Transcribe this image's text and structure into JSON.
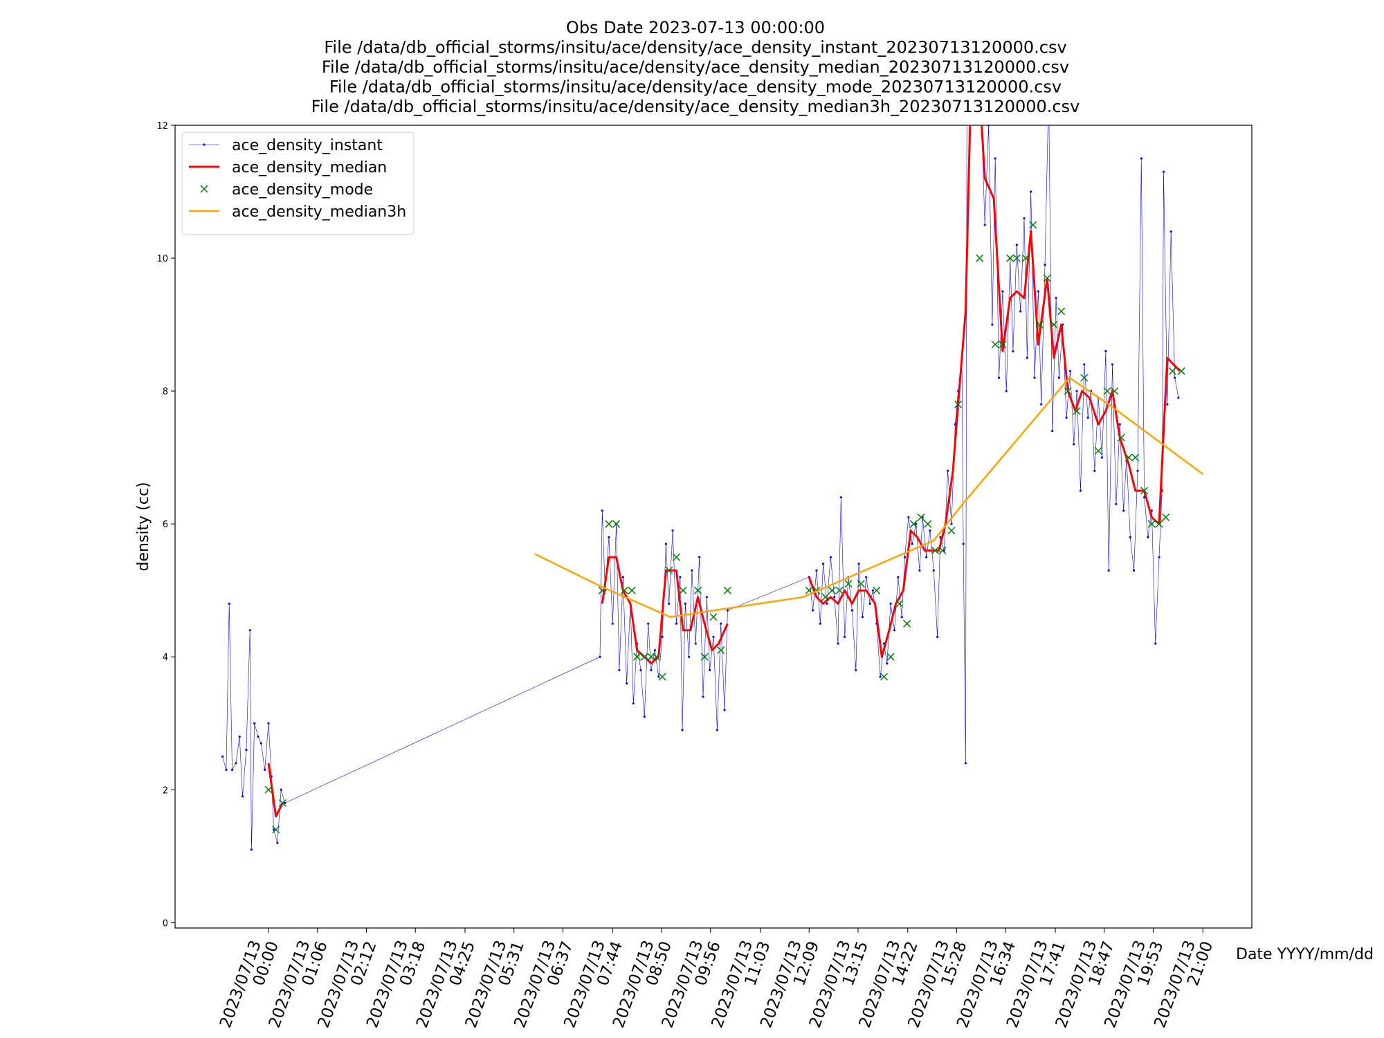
{
  "chart_data": {
    "type": "line",
    "title": [
      "Obs Date 2023-07-13 00:00:00",
      "File /data/db_official_storms/insitu/ace/density/ace_density_instant_20230713120000.csv",
      "File /data/db_official_storms/insitu/ace/density/ace_density_median_20230713120000.csv",
      "File /data/db_official_storms/insitu/ace/density/ace_density_mode_20230713120000.csv",
      "File /data/db_official_storms/insitu/ace/density/ace_density_median3h_20230713120000.csv"
    ],
    "xlabel": "Date YYYY/mm/dd",
    "ylabel": "density (cc)",
    "xlim": [
      "2023/07/12 21:54",
      "2023/07/13 22:06"
    ],
    "xticks": [
      "2023/07/13 00:00",
      "2023/07/13 01:06",
      "2023/07/13 02:12",
      "2023/07/13 03:18",
      "2023/07/13 04:25",
      "2023/07/13 05:31",
      "2023/07/13 06:37",
      "2023/07/13 07:44",
      "2023/07/13 08:50",
      "2023/07/13 09:56",
      "2023/07/13 11:03",
      "2023/07/13 12:09",
      "2023/07/13 13:15",
      "2023/07/13 14:22",
      "2023/07/13 15:28",
      "2023/07/13 16:34",
      "2023/07/13 17:41",
      "2023/07/13 18:47",
      "2023/07/13 19:53",
      "2023/07/13 21:00"
    ],
    "ylim": [
      -0.08,
      12
    ],
    "yticks": [
      0,
      2,
      4,
      6,
      8,
      10,
      12
    ],
    "legend": "upper left",
    "grid": false,
    "series": [
      {
        "name": "ace_density_instant",
        "color": "#0000ff",
        "linestyle": "solid",
        "linewidth": 0.6,
        "marker": "dot",
        "x": [
          "2023/07/12 22:58",
          "2023/07/12 23:03",
          "2023/07/12 23:07",
          "2023/07/12 23:11",
          "2023/07/12 23:16",
          "2023/07/12 23:21",
          "2023/07/12 23:25",
          "2023/07/12 23:30",
          "2023/07/12 23:35",
          "2023/07/12 23:37",
          "2023/07/12 23:41",
          "2023/07/12 23:46",
          "2023/07/12 23:50",
          "2023/07/12 23:55",
          "2023/07/13 00:00",
          "2023/07/13 00:04",
          "2023/07/13 00:07",
          "2023/07/13 00:12",
          "2023/07/13 00:17",
          "2023/07/13 00:22",
          "2023/07/13 07:27",
          "2023/07/13 07:30",
          "2023/07/13 07:34",
          "2023/07/13 07:39",
          "2023/07/13 07:44",
          "2023/07/13 07:49",
          "2023/07/13 07:53",
          "2023/07/13 07:58",
          "2023/07/13 08:03",
          "2023/07/13 08:08",
          "2023/07/13 08:12",
          "2023/07/13 08:17",
          "2023/07/13 08:22",
          "2023/07/13 08:27",
          "2023/07/13 08:32",
          "2023/07/13 08:36",
          "2023/07/13 08:41",
          "2023/07/13 08:46",
          "2023/07/13 08:51",
          "2023/07/13 08:56",
          "2023/07/13 09:00",
          "2023/07/13 09:05",
          "2023/07/13 09:10",
          "2023/07/13 09:15",
          "2023/07/13 09:18",
          "2023/07/13 09:22",
          "2023/07/13 09:27",
          "2023/07/13 09:31",
          "2023/07/13 09:36",
          "2023/07/13 09:41",
          "2023/07/13 09:46",
          "2023/07/13 09:51",
          "2023/07/13 09:55",
          "2023/07/13 10:00",
          "2023/07/13 10:05",
          "2023/07/13 10:10",
          "2023/07/13 10:15",
          "2023/07/13 10:19",
          "2023/07/13 12:09",
          "2023/07/13 12:14",
          "2023/07/13 12:19",
          "2023/07/13 12:24",
          "2023/07/13 12:28",
          "2023/07/13 12:33",
          "2023/07/13 12:38",
          "2023/07/13 12:43",
          "2023/07/13 12:48",
          "2023/07/13 12:52",
          "2023/07/13 12:57",
          "2023/07/13 13:02",
          "2023/07/13 13:07",
          "2023/07/13 13:12",
          "2023/07/13 13:16",
          "2023/07/13 13:21",
          "2023/07/13 13:26",
          "2023/07/13 13:31",
          "2023/07/13 13:35",
          "2023/07/13 13:40",
          "2023/07/13 13:45",
          "2023/07/13 13:50",
          "2023/07/13 13:54",
          "2023/07/13 13:59",
          "2023/07/13 14:04",
          "2023/07/13 14:09",
          "2023/07/13 14:14",
          "2023/07/13 14:18",
          "2023/07/13 14:23",
          "2023/07/13 14:28",
          "2023/07/13 14:33",
          "2023/07/13 14:38",
          "2023/07/13 14:42",
          "2023/07/13 14:47",
          "2023/07/13 14:52",
          "2023/07/13 14:57",
          "2023/07/13 15:02",
          "2023/07/13 15:06",
          "2023/07/13 15:11",
          "2023/07/13 15:16",
          "2023/07/13 15:21",
          "2023/07/13 15:26",
          "2023/07/13 15:30",
          "2023/07/13 15:35",
          "2023/07/13 15:37",
          "2023/07/13 15:40",
          "2023/07/13 15:42",
          "2023/07/13 15:54",
          "2023/07/13 16:01",
          "2023/07/13 16:06",
          "2023/07/13 16:11",
          "2023/07/13 16:16",
          "2023/07/13 16:20",
          "2023/07/13 16:25",
          "2023/07/13 16:30",
          "2023/07/13 16:35",
          "2023/07/13 16:40",
          "2023/07/13 16:44",
          "2023/07/13 16:49",
          "2023/07/13 16:54",
          "2023/07/13 16:59",
          "2023/07/13 17:03",
          "2023/07/13 17:08",
          "2023/07/13 17:13",
          "2023/07/13 17:18",
          "2023/07/13 17:22",
          "2023/07/13 17:27",
          "2023/07/13 17:32",
          "2023/07/13 17:37",
          "2023/07/13 17:42",
          "2023/07/13 17:46",
          "2023/07/13 17:51",
          "2023/07/13 17:56",
          "2023/07/13 18:01",
          "2023/07/13 18:06",
          "2023/07/13 18:10",
          "2023/07/13 18:15",
          "2023/07/13 18:20",
          "2023/07/13 18:25",
          "2023/07/13 18:29",
          "2023/07/13 18:34",
          "2023/07/13 18:39",
          "2023/07/13 18:44",
          "2023/07/13 18:49",
          "2023/07/13 18:53",
          "2023/07/13 18:58",
          "2023/07/13 19:03",
          "2023/07/13 19:08",
          "2023/07/13 19:13",
          "2023/07/13 19:17",
          "2023/07/13 19:22",
          "2023/07/13 19:27",
          "2023/07/13 19:32",
          "2023/07/13 19:37",
          "2023/07/13 19:41",
          "2023/07/13 19:46",
          "2023/07/13 19:51",
          "2023/07/13 19:56",
          "2023/07/13 20:01",
          "2023/07/13 20:05",
          "2023/07/13 20:07",
          "2023/07/13 20:12",
          "2023/07/13 20:17",
          "2023/07/13 20:22",
          "2023/07/13 20:27"
        ],
        "values": [
          2.5,
          2.3,
          4.8,
          2.3,
          2.4,
          2.8,
          1.9,
          2.6,
          4.4,
          1.1,
          3.0,
          2.8,
          2.7,
          2.3,
          3.0,
          2.2,
          1.4,
          1.2,
          2.0,
          1.8,
          4.0,
          6.2,
          5.0,
          5.8,
          4.5,
          6.0,
          3.8,
          5.2,
          3.6,
          4.8,
          3.3,
          4.2,
          3.8,
          3.1,
          4.5,
          3.8,
          4.1,
          3.7,
          4.3,
          5.7,
          4.8,
          5.9,
          4.5,
          5.2,
          2.9,
          4.8,
          4.0,
          5.3,
          4.2,
          5.5,
          3.4,
          4.9,
          3.8,
          4.3,
          2.9,
          4.5,
          3.2,
          4.7,
          5.2,
          4.7,
          5.3,
          4.5,
          5.4,
          4.8,
          5.5,
          4.9,
          4.2,
          6.4,
          4.3,
          5.2,
          4.7,
          3.8,
          5.4,
          4.6,
          5.2,
          4.8,
          5.0,
          4.5,
          3.7,
          4.2,
          3.9,
          4.8,
          4.4,
          5.2,
          4.6,
          5.5,
          6.1,
          5.7,
          6.0,
          5.3,
          6.1,
          5.5,
          5.9,
          5.3,
          4.3,
          5.8,
          5.6,
          6.8,
          6.0,
          7.5,
          8.0,
          8.5,
          5.7,
          2.4,
          13.5,
          12.5,
          12.2,
          10.5,
          12.0,
          9.0,
          11.5,
          8.2,
          9.5,
          8.0,
          10.0,
          8.6,
          10.2,
          9.2,
          10.6,
          8.5,
          11.0,
          8.2,
          9.5,
          7.8,
          9.9,
          12.5,
          7.4,
          9.4,
          8.2,
          9.0,
          7.6,
          8.3,
          7.2,
          8.0,
          6.5,
          8.4,
          7.6,
          8.0,
          6.8,
          7.9,
          7.0,
          8.6,
          5.3,
          8.4,
          6.3,
          7.5,
          6.2,
          7.0,
          5.8,
          5.3,
          6.8,
          11.5,
          6.4,
          5.8,
          6.2,
          4.2,
          5.5,
          6.5,
          11.3,
          7.8,
          10.4,
          8.2,
          7.9
        ]
      },
      {
        "name": "ace_density_median",
        "color": "#ff0000",
        "linestyle": "solid",
        "linewidth": 3,
        "marker": "none",
        "x": [
          "2023/07/13 00:00",
          "2023/07/13 00:10",
          "2023/07/13 00:19",
          null,
          "2023/07/13 07:30",
          "2023/07/13 07:39",
          "2023/07/13 07:49",
          "2023/07/13 07:58",
          "2023/07/13 08:08",
          "2023/07/13 08:17",
          "2023/07/13 08:27",
          "2023/07/13 08:36",
          "2023/07/13 08:46",
          "2023/07/13 08:56",
          "2023/07/13 09:10",
          "2023/07/13 09:19",
          "2023/07/13 09:29",
          "2023/07/13 09:39",
          "2023/07/13 09:48",
          "2023/07/13 09:58",
          "2023/07/13 10:07",
          "2023/07/13 10:19",
          null,
          "2023/07/13 12:09",
          "2023/07/13 12:19",
          "2023/07/13 12:28",
          "2023/07/13 12:38",
          "2023/07/13 12:48",
          "2023/07/13 12:57",
          "2023/07/13 13:07",
          "2023/07/13 13:16",
          "2023/07/13 13:26",
          "2023/07/13 13:38",
          "2023/07/13 13:47",
          "2023/07/13 13:57",
          "2023/07/13 14:06",
          "2023/07/13 14:16",
          "2023/07/13 14:26",
          "2023/07/13 14:35",
          "2023/07/13 14:45",
          "2023/07/13 14:54",
          "2023/07/13 15:04",
          "2023/07/13 15:13",
          "2023/07/13 15:23",
          "2023/07/13 15:30",
          "2023/07/13 15:40",
          "2023/07/13 15:47",
          "2023/07/13 15:59",
          "2023/07/13 16:06",
          "2023/07/13 16:18",
          "2023/07/13 16:30",
          "2023/07/13 16:40",
          "2023/07/13 16:49",
          "2023/07/13 16:59",
          "2023/07/13 17:08",
          "2023/07/13 17:18",
          "2023/07/13 17:30",
          "2023/07/13 17:39",
          "2023/07/13 17:49",
          "2023/07/13 17:58",
          "2023/07/13 18:08",
          "2023/07/13 18:17",
          "2023/07/13 18:27",
          "2023/07/13 18:39",
          "2023/07/13 18:49",
          "2023/07/13 18:58",
          "2023/07/13 19:08",
          "2023/07/13 19:20",
          "2023/07/13 19:29",
          "2023/07/13 19:41",
          "2023/07/13 19:51",
          "2023/07/13 20:01",
          "2023/07/13 20:12",
          "2023/07/13 20:29"
        ],
        "values": [
          2.4,
          1.6,
          1.8,
          null,
          4.8,
          5.5,
          5.5,
          5.0,
          4.8,
          4.1,
          4.0,
          3.9,
          4.0,
          5.3,
          5.3,
          4.4,
          4.4,
          4.9,
          4.5,
          4.1,
          4.2,
          4.5,
          null,
          5.2,
          4.9,
          4.8,
          4.9,
          4.8,
          5.0,
          4.8,
          5.0,
          5.0,
          4.8,
          4.0,
          4.4,
          4.8,
          5.0,
          5.9,
          5.8,
          5.6,
          5.6,
          5.6,
          6.0,
          6.8,
          7.8,
          9.2,
          12.5,
          12.5,
          11.2,
          10.9,
          8.6,
          9.4,
          9.5,
          9.4,
          10.4,
          8.7,
          9.7,
          8.5,
          9.0,
          8.0,
          7.7,
          8.0,
          7.9,
          7.5,
          7.7,
          8.0,
          7.3,
          6.9,
          6.5,
          6.5,
          6.1,
          6.0,
          8.5,
          8.3
        ]
      },
      {
        "name": "ace_density_mode",
        "color": "#008000",
        "linestyle": "none",
        "linewidth": 0,
        "marker": "x",
        "x": [
          "2023/07/13 00:00",
          "2023/07/13 00:10",
          "2023/07/13 00:19",
          "2023/07/13 07:30",
          "2023/07/13 07:39",
          "2023/07/13 07:49",
          "2023/07/13 08:00",
          "2023/07/13 08:10",
          "2023/07/13 08:17",
          "2023/07/13 08:27",
          "2023/07/13 08:36",
          "2023/07/13 08:43",
          "2023/07/13 08:51",
          "2023/07/13 09:00",
          "2023/07/13 09:10",
          "2023/07/13 09:19",
          "2023/07/13 09:39",
          "2023/07/13 09:48",
          "2023/07/13 10:00",
          "2023/07/13 10:10",
          "2023/07/13 10:19",
          "2023/07/13 12:09",
          "2023/07/13 12:19",
          "2023/07/13 12:31",
          "2023/07/13 12:40",
          "2023/07/13 12:50",
          "2023/07/13 13:02",
          "2023/07/13 13:19",
          "2023/07/13 13:40",
          "2023/07/13 13:50",
          "2023/07/13 13:59",
          "2023/07/13 14:11",
          "2023/07/13 14:21",
          "2023/07/13 14:30",
          "2023/07/13 14:40",
          "2023/07/13 14:49",
          "2023/07/13 14:59",
          "2023/07/13 15:09",
          "2023/07/13 15:21",
          "2023/07/13 15:30",
          "2023/07/13 15:59",
          "2023/07/13 16:20",
          "2023/07/13 16:30",
          "2023/07/13 16:40",
          "2023/07/13 16:49",
          "2023/07/13 17:01",
          "2023/07/13 17:11",
          "2023/07/13 17:20",
          "2023/07/13 17:30",
          "2023/07/13 17:39",
          "2023/07/13 17:49",
          "2023/07/13 17:58",
          "2023/07/13 18:10",
          "2023/07/13 18:20",
          "2023/07/13 18:39",
          "2023/07/13 18:51",
          "2023/07/13 19:01",
          "2023/07/13 19:10",
          "2023/07/13 19:20",
          "2023/07/13 19:29",
          "2023/07/13 19:41",
          "2023/07/13 19:51",
          "2023/07/13 20:01",
          "2023/07/13 20:10",
          "2023/07/13 20:19",
          "2023/07/13 20:31"
        ],
        "values": [
          2.0,
          1.4,
          1.8,
          5.0,
          6.0,
          6.0,
          5.0,
          5.0,
          4.0,
          4.0,
          4.0,
          4.0,
          3.7,
          5.3,
          5.5,
          5.0,
          5.0,
          4.0,
          4.6,
          4.1,
          5.0,
          5.0,
          5.0,
          4.9,
          5.0,
          5.0,
          5.1,
          5.1,
          5.0,
          3.7,
          4.0,
          4.8,
          4.5,
          6.0,
          6.1,
          6.0,
          5.6,
          5.6,
          5.9,
          7.8,
          10.0,
          8.7,
          8.7,
          10.0,
          10.0,
          10.0,
          10.5,
          9.0,
          9.7,
          9.0,
          9.2,
          8.0,
          7.7,
          8.2,
          7.1,
          8.0,
          8.0,
          7.3,
          7.0,
          7.0,
          6.5,
          6.0,
          6.0,
          6.1,
          8.3,
          8.3
        ]
      },
      {
        "name": "ace_density_median3h",
        "color": "#ffa500",
        "linestyle": "solid",
        "linewidth": 2.5,
        "marker": "none",
        "x": [
          "2023/07/13 05:59",
          "2023/07/13 07:30",
          "2023/07/13 09:02",
          "2023/07/13 12:01",
          "2023/07/13 14:57",
          "2023/07/13 15:36",
          "2023/07/13 18:00",
          "2023/07/13 18:53",
          "2023/07/13 21:00"
        ],
        "values": [
          5.55,
          5.05,
          4.6,
          4.9,
          5.75,
          6.3,
          8.2,
          7.8,
          6.75
        ]
      }
    ]
  }
}
